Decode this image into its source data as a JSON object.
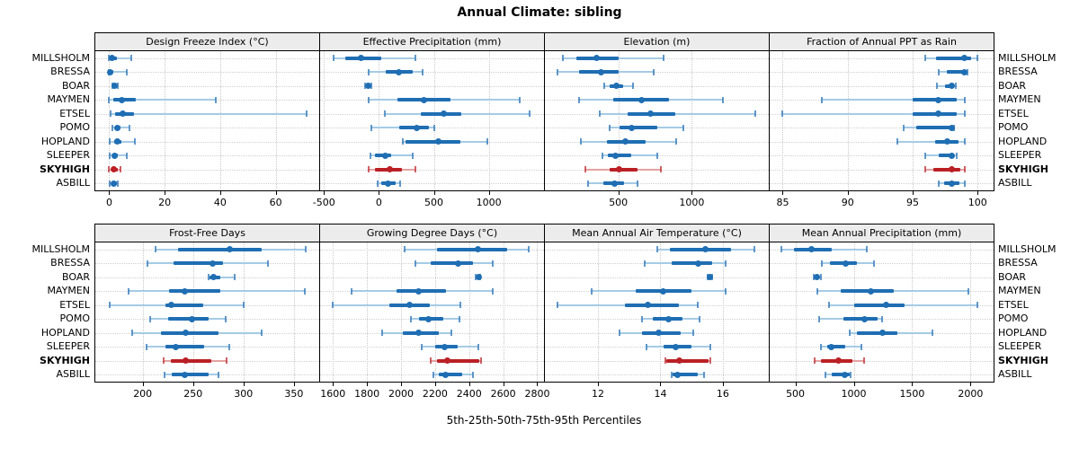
{
  "chart_data": {
    "type": "trellis-percentile-dotplot",
    "title": "Annual Climate: sibling",
    "caption": "5th-25th-50th-75th-95th Percentiles",
    "percentiles": [
      5,
      25,
      50,
      75,
      95
    ],
    "highlight": "SKYHIGH",
    "colors": {
      "main": "#1f6eb3",
      "light": "#a5cbe5",
      "highlight_main": "#ba2025",
      "highlight_light": "#e4a2a2",
      "strip_bg": "#ececec",
      "grid": "#c9c9c9",
      "border": "#000000"
    },
    "stations": [
      "MILLSHOLM",
      "BRESSA",
      "BOAR",
      "MAYMEN",
      "ETSEL",
      "POMO",
      "HOPLAND",
      "SLEEPER",
      "SKYHIGH",
      "ASBILL"
    ],
    "panels": [
      {
        "id": "design-freeze-index",
        "title": "Design Freeze Index (°C)",
        "xlim": [
          -5,
          76
        ],
        "ticks": [
          0,
          20,
          40,
          60
        ],
        "values": [
          [
            0,
            0.3,
            1,
            2.7,
            8
          ],
          [
            0,
            0.2,
            0.5,
            1.5,
            6.3
          ],
          [
            1.3,
            1.7,
            2,
            2.4,
            3
          ],
          [
            0,
            1.5,
            4.5,
            9.5,
            38.5
          ],
          [
            0.5,
            2,
            4.8,
            8.8,
            71
          ],
          [
            1,
            2,
            2.9,
            4.2,
            7.2
          ],
          [
            0.2,
            1.7,
            3,
            4.5,
            9.3
          ],
          [
            0.3,
            1,
            2,
            3,
            6.2
          ],
          [
            0,
            0.7,
            1.8,
            3,
            4.2
          ],
          [
            0.1,
            0.9,
            1.7,
            2.7,
            3.1
          ]
        ]
      },
      {
        "id": "effective-precipitation",
        "title": "Effective Precipitation (mm)",
        "xlim": [
          -535,
          1510
        ],
        "ticks": [
          -500,
          0,
          500,
          1000
        ],
        "values": [
          [
            -410,
            -310,
            -165,
            20,
            330
          ],
          [
            -90,
            60,
            180,
            305,
            400
          ],
          [
            -130,
            -115,
            -100,
            -85,
            -70
          ],
          [
            -95,
            165,
            410,
            655,
            1280
          ],
          [
            55,
            385,
            590,
            750,
            1370
          ],
          [
            -70,
            185,
            345,
            455,
            505
          ],
          [
            220,
            245,
            540,
            745,
            990
          ],
          [
            -80,
            -35,
            55,
            115,
            305
          ],
          [
            -95,
            -35,
            100,
            210,
            330
          ],
          [
            -15,
            20,
            80,
            155,
            195
          ]
        ]
      },
      {
        "id": "elevation",
        "title": "Elevation (m)",
        "xlim": [
          0,
          1530
        ],
        "ticks": [
          500,
          1000
        ],
        "values": [
          [
            120,
            215,
            350,
            500,
            810
          ],
          [
            85,
            235,
            385,
            500,
            740
          ],
          [
            405,
            440,
            485,
            530,
            600
          ],
          [
            230,
            465,
            655,
            845,
            1210
          ],
          [
            375,
            560,
            720,
            890,
            1430
          ],
          [
            440,
            510,
            590,
            765,
            945
          ],
          [
            245,
            420,
            545,
            685,
            895
          ],
          [
            390,
            430,
            480,
            590,
            765
          ],
          [
            275,
            440,
            505,
            630,
            790
          ],
          [
            295,
            400,
            475,
            540,
            630
          ]
        ]
      },
      {
        "id": "fraction-ppt-as-rain",
        "title": "Fraction of Annual PPT as Rain",
        "xlim": [
          84,
          101.3
        ],
        "ticks": [
          85,
          90,
          95,
          100
        ],
        "values": [
          [
            96,
            96.8,
            99,
            99.5,
            100
          ],
          [
            97,
            97.6,
            99,
            99.1,
            99.2
          ],
          [
            96.9,
            97.5,
            98,
            98.1,
            98.3
          ],
          [
            88,
            95,
            97,
            98.4,
            99
          ],
          [
            85,
            95,
            97,
            98.4,
            99
          ],
          [
            94.3,
            95.3,
            98,
            98.1,
            98.2
          ],
          [
            93.8,
            96.7,
            97.7,
            98.5,
            99
          ],
          [
            96,
            97,
            98,
            98.2,
            98.4
          ],
          [
            96,
            96.6,
            98,
            98.7,
            99
          ],
          [
            97,
            97.4,
            98,
            98.6,
            99
          ]
        ]
      },
      {
        "id": "frost-free-days",
        "title": "Frost-Free Days",
        "xlim": [
          153,
          376
        ],
        "ticks": [
          200,
          250,
          300,
          350
        ],
        "values": [
          [
            213,
            235,
            286,
            318,
            362
          ],
          [
            205,
            231,
            269,
            280,
            324
          ],
          [
            265,
            266,
            270,
            277,
            291
          ],
          [
            186,
            226,
            242,
            277,
            361
          ],
          [
            167,
            223,
            228,
            260,
            300
          ],
          [
            207,
            225,
            249,
            265,
            282
          ],
          [
            190,
            218,
            243,
            275,
            318
          ],
          [
            204,
            223,
            233,
            261,
            286
          ],
          [
            221,
            228,
            243,
            268,
            283
          ],
          [
            222,
            229,
            242,
            265,
            275
          ]
        ]
      },
      {
        "id": "growing-degree-days",
        "title": "Growing Degree Days (°C)",
        "xlim": [
          1525,
          2845
        ],
        "ticks": [
          1600,
          1800,
          2000,
          2200,
          2400,
          2600,
          2800
        ],
        "values": [
          [
            2020,
            2210,
            2450,
            2625,
            2750
          ],
          [
            2085,
            2175,
            2335,
            2425,
            2540
          ],
          [
            2437,
            2448,
            2455,
            2462,
            2467
          ],
          [
            1710,
            1975,
            2105,
            2265,
            2540
          ],
          [
            1600,
            1930,
            2050,
            2170,
            2350
          ],
          [
            2057,
            2107,
            2160,
            2247,
            2344
          ],
          [
            1890,
            2010,
            2103,
            2220,
            2296
          ],
          [
            2124,
            2203,
            2256,
            2335,
            2455
          ],
          [
            2177,
            2212,
            2274,
            2458,
            2470
          ],
          [
            2190,
            2220,
            2260,
            2360,
            2423
          ]
        ]
      },
      {
        "id": "mean-annual-air-temperature",
        "title": "Mean Annual Air Temperature (°C)",
        "xlim": [
          10.3,
          17.5
        ],
        "ticks": [
          12,
          14,
          16
        ],
        "values": [
          [
            13.9,
            14.3,
            15.45,
            16.25,
            17.0
          ],
          [
            13.5,
            14.35,
            15.2,
            15.65,
            16.1
          ],
          [
            15.5,
            15.54,
            15.58,
            15.62,
            15.66
          ],
          [
            11.8,
            13.2,
            14.1,
            15.0,
            16.1
          ],
          [
            10.7,
            12.85,
            13.6,
            14.6,
            15.2
          ],
          [
            13.4,
            13.75,
            14.25,
            14.7,
            15.25
          ],
          [
            12.7,
            13.4,
            13.95,
            14.65,
            15.05
          ],
          [
            13.55,
            14.1,
            14.5,
            15.0,
            15.6
          ],
          [
            14.15,
            14.2,
            14.6,
            15.55,
            15.6
          ],
          [
            14.35,
            14.4,
            14.55,
            15.2,
            15.4
          ]
        ]
      },
      {
        "id": "mean-annual-precipitation",
        "title": "Mean Annual Precipitation (mm)",
        "xlim": [
          280,
          2205
        ],
        "ticks": [
          500,
          1000,
          1500,
          2000
        ],
        "values": [
          [
            380,
            490,
            640,
            815,
            1110
          ],
          [
            725,
            795,
            930,
            1025,
            1175
          ],
          [
            660,
            672,
            685,
            700,
            718
          ],
          [
            690,
            890,
            1145,
            1345,
            1985
          ],
          [
            785,
            1000,
            1275,
            1435,
            2060
          ],
          [
            700,
            910,
            1090,
            1205,
            1240
          ],
          [
            965,
            1025,
            1250,
            1370,
            1675
          ],
          [
            720,
            770,
            805,
            925,
            1065
          ],
          [
            665,
            720,
            870,
            990,
            1090
          ],
          [
            755,
            815,
            925,
            965,
            975
          ]
        ]
      }
    ],
    "layout_hints": {
      "grid": "dotted",
      "rows": 2,
      "cols": 4,
      "station_labels": "both-sides",
      "x_axis": "below-each-panel-row"
    }
  }
}
